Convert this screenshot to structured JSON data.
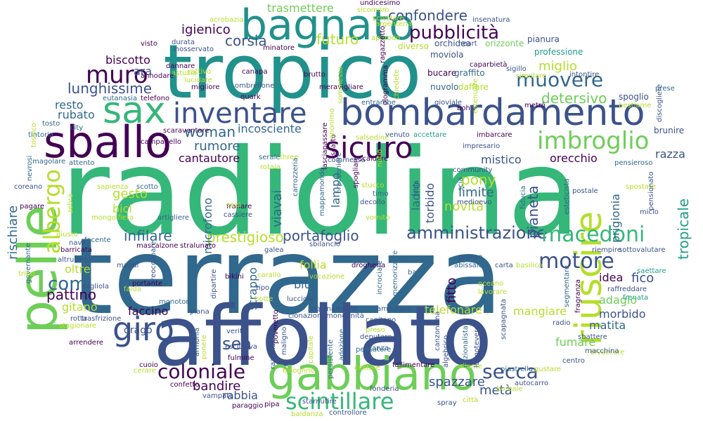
{
  "palette": {
    "dark_purple": "#440154",
    "indigo": "#3b528b",
    "blue": "#31688e",
    "teal": "#21918c",
    "sea": "#1f9e89",
    "green": "#35b779",
    "light_green": "#6ece58",
    "lime": "#b5de2b"
  },
  "words": [
    {
      "text": "radiolina",
      "color": "#35b779"
    },
    {
      "text": "terrazza",
      "color": "#31688e"
    },
    {
      "text": "affollato",
      "color": "#3b528b"
    },
    {
      "text": "tropico",
      "color": "#21918c"
    },
    {
      "text": "bombardamento",
      "color": "#3b528b"
    },
    {
      "text": "pelle",
      "color": "#6ece58"
    },
    {
      "text": "gabbiano",
      "color": "#6ece58"
    },
    {
      "text": "bagnato",
      "color": "#21918c"
    },
    {
      "text": "sballo",
      "color": "#440154"
    },
    {
      "text": "sax",
      "color": "#35b779"
    },
    {
      "text": "inventare",
      "color": "#3b528b"
    },
    {
      "text": "riuscire",
      "color": "#b5de2b"
    },
    {
      "text": "sicuro",
      "color": "#440154"
    },
    {
      "text": "imbroglio",
      "color": "#6ece58"
    },
    {
      "text": "giro",
      "color": "#3b528b"
    },
    {
      "text": "scintillare",
      "color": "#35b779"
    },
    {
      "text": "coloniale",
      "color": "#440154"
    },
    {
      "text": "amministrazione",
      "color": "#3b528b"
    },
    {
      "text": "pubblicità",
      "color": "#440154"
    },
    {
      "text": "muovere",
      "color": "#31688e"
    },
    {
      "text": "motore",
      "color": "#3b528b"
    },
    {
      "text": "macedoni",
      "color": "#35b779"
    },
    {
      "text": "muro",
      "color": "#440154"
    },
    {
      "text": "secca",
      "color": "#3b528b"
    },
    {
      "text": "albergo",
      "color": "#b5de2b"
    },
    {
      "text": "confondere",
      "color": "#3b528b"
    },
    {
      "text": "com",
      "color": "#31688e"
    },
    {
      "text": "woman",
      "color": "#31688e"
    },
    {
      "text": "sea",
      "color": "#3b528b"
    },
    {
      "text": "lunghissime",
      "color": "#3b528b"
    },
    {
      "text": "tropicale",
      "color": "#1f9e89"
    },
    {
      "text": "corsia",
      "color": "#3b528b"
    },
    {
      "text": "trasmettere",
      "color": "#6ece58"
    },
    {
      "text": "futuro",
      "color": "#b5de2b"
    },
    {
      "text": "igienico",
      "color": "#440154"
    },
    {
      "text": "biscotto",
      "color": "#440154"
    },
    {
      "text": "ara",
      "color": "#3b528b"
    },
    {
      "text": "detersivo",
      "color": "#6ece58"
    },
    {
      "text": "miglio",
      "color": "#b5de2b"
    },
    {
      "text": "idea",
      "color": "#440154"
    },
    {
      "text": "fico",
      "color": "#3b528b"
    },
    {
      "text": "adagio",
      "color": "#6ece58"
    },
    {
      "text": "pianeta",
      "color": "#3b528b"
    },
    {
      "text": "prigionia",
      "color": "#31688e"
    },
    {
      "text": "razza",
      "color": "#3b528b"
    },
    {
      "text": "orecchio",
      "color": "#440154"
    },
    {
      "text": "morbido",
      "color": "#3b528b"
    },
    {
      "text": "matita",
      "color": "#31688e"
    },
    {
      "text": "fumare",
      "color": "#6ece58"
    },
    {
      "text": "mangiare",
      "color": "#b5de2b"
    },
    {
      "text": "telefonare",
      "color": "#b5de2b"
    },
    {
      "text": "spazzare",
      "color": "#3b528b"
    },
    {
      "text": "metà",
      "color": "#3b528b"
    },
    {
      "text": "incosciente",
      "color": "#31688e"
    },
    {
      "text": "rumore",
      "color": "#31688e"
    },
    {
      "text": "cantautore",
      "color": "#440154"
    },
    {
      "text": "gesto",
      "color": "#b5de2b"
    },
    {
      "text": "bici",
      "color": "#b5de2b"
    },
    {
      "text": "infilare",
      "color": "#31688e"
    },
    {
      "text": "prestigioso",
      "color": "#b5de2b"
    },
    {
      "text": "portafoglio",
      "color": "#3b528b"
    },
    {
      "text": "microfono",
      "color": "#31688e"
    },
    {
      "text": "viavai",
      "color": "#31688e"
    },
    {
      "text": "lampo",
      "color": "#31688e"
    },
    {
      "text": "pony",
      "color": "#b5de2b"
    },
    {
      "text": "limite",
      "color": "#31688e"
    },
    {
      "text": "novità",
      "color": "#b5de2b"
    },
    {
      "text": "mistico",
      "color": "#3b528b"
    },
    {
      "text": "ladro",
      "color": "#31688e"
    },
    {
      "text": "torbido",
      "color": "#3b528b"
    },
    {
      "text": "rischiare",
      "color": "#31688e"
    },
    {
      "text": "pattino",
      "color": "#440154"
    },
    {
      "text": "gitano",
      "color": "#b5de2b"
    },
    {
      "text": "oltre",
      "color": "#b5de2b"
    },
    {
      "text": "faccino",
      "color": "#440154"
    },
    {
      "text": "strappo",
      "color": "#31688e"
    },
    {
      "text": "drago",
      "color": "#3b528b"
    },
    {
      "text": "follia",
      "color": "#b5de2b"
    },
    {
      "text": "blue",
      "color": "#31688e"
    },
    {
      "text": "bandire",
      "color": "#440154"
    },
    {
      "text": "rabbia",
      "color": "#3b528b"
    },
    {
      "text": "fitto",
      "color": "#440154"
    },
    {
      "text": "resto",
      "color": "#31688e"
    },
    {
      "text": "rubato",
      "color": "#31688e"
    },
    {
      "text": "tosto",
      "color": "#31688e"
    },
    {
      "text": "tintoria",
      "color": "#31688e"
    },
    {
      "text": "scia",
      "color": "#31688e"
    },
    {
      "text": "undicesimo",
      "color": "#440154"
    },
    {
      "text": "orchidea",
      "color": "#3b528b"
    },
    {
      "text": "moviola",
      "color": "#3b528b"
    },
    {
      "text": "bucare",
      "color": "#440154"
    },
    {
      "text": "graffito",
      "color": "#31688e"
    },
    {
      "text": "nuvolo",
      "color": "#31688e"
    },
    {
      "text": "daffare",
      "color": "#b5de2b"
    },
    {
      "text": "diverso",
      "color": "#b5de2b"
    },
    {
      "text": "orizzonte",
      "color": "#6ece58"
    },
    {
      "text": "pianura",
      "color": "#3b528b"
    },
    {
      "text": "professione",
      "color": "#1f9e89"
    },
    {
      "text": "spoglio",
      "color": "#3b528b"
    },
    {
      "text": "brunire",
      "color": "#3b528b"
    },
    {
      "text": "gioviale",
      "color": "#3b528b"
    },
    {
      "text": "entrambe",
      "color": "#31688e"
    },
    {
      "text": "metrò",
      "color": "#440154"
    },
    {
      "text": "imbarcare",
      "color": "#440154"
    },
    {
      "text": "impresario",
      "color": "#3b528b"
    },
    {
      "text": "commessa",
      "color": "#3b528b"
    },
    {
      "text": "scaldare",
      "color": "#440154"
    },
    {
      "text": "scatto",
      "color": "#440154"
    },
    {
      "text": "venuto",
      "color": "#3b528b"
    },
    {
      "text": "accettare",
      "color": "#1f9e89"
    },
    {
      "text": "rotaia",
      "color": "#b5de2b"
    },
    {
      "text": "three",
      "color": "#b5de2b"
    },
    {
      "text": "serale",
      "color": "#31688e"
    },
    {
      "text": "community",
      "color": "#3b528b"
    },
    {
      "text": "pensieroso",
      "color": "#31688e"
    },
    {
      "text": "spostare",
      "color": "#b5de2b"
    },
    {
      "text": "postale",
      "color": "#3b528b"
    },
    {
      "text": "micio",
      "color": "#3b528b"
    },
    {
      "text": "pensionato",
      "color": "#3b528b"
    },
    {
      "text": "medioevo",
      "color": "#3b528b"
    },
    {
      "text": "fiducia",
      "color": "#31688e"
    },
    {
      "text": "stucco",
      "color": "#b5de2b"
    },
    {
      "text": "timo",
      "color": "#31688e"
    },
    {
      "text": "decollo",
      "color": "#3b528b"
    },
    {
      "text": "carrozzeria",
      "color": "#31688e"
    },
    {
      "text": "isola",
      "color": "#3b528b"
    },
    {
      "text": "spogliare",
      "color": "#440154"
    },
    {
      "text": "franare",
      "color": "#440154"
    },
    {
      "text": "cassiere",
      "color": "#3b528b"
    },
    {
      "text": "soul",
      "color": "#b5de2b"
    },
    {
      "text": "pagare",
      "color": "#440154"
    },
    {
      "text": "coreano",
      "color": "#3b528b"
    },
    {
      "text": "mongolfiera",
      "color": "#b5de2b"
    },
    {
      "text": "giusto",
      "color": "#b5de2b"
    },
    {
      "text": "nave",
      "color": "#3b528b"
    },
    {
      "text": "facente",
      "color": "#31688e"
    },
    {
      "text": "mascalzone",
      "color": "#440154"
    },
    {
      "text": "stralunato",
      "color": "#440154"
    },
    {
      "text": "galea",
      "color": "#3b528b"
    },
    {
      "text": "sbilancio",
      "color": "#3b528b"
    },
    {
      "text": "barricata",
      "color": "#440154"
    },
    {
      "text": "altruismo",
      "color": "#3b528b"
    },
    {
      "text": "governante",
      "color": "#31688e"
    },
    {
      "text": "tribù",
      "color": "#b5de2b"
    },
    {
      "text": "mandi",
      "color": "#3b528b"
    },
    {
      "text": "tagliola",
      "color": "#3b528b"
    },
    {
      "text": "falda",
      "color": "#b5de2b"
    },
    {
      "text": "preoccupare",
      "color": "#3b528b"
    },
    {
      "text": "monotonia",
      "color": "#31688e"
    },
    {
      "text": "dipartire",
      "color": "#3b528b"
    },
    {
      "text": "bikini",
      "color": "#440154"
    },
    {
      "text": "corallo",
      "color": "#b5de2b"
    },
    {
      "text": "vocazione",
      "color": "#b5de2b"
    },
    {
      "text": "lucciola",
      "color": "#3b528b"
    },
    {
      "text": "tipo",
      "color": "#3b528b"
    },
    {
      "text": "botte",
      "color": "#b5de2b"
    },
    {
      "text": "piana",
      "color": "#3b528b"
    },
    {
      "text": "inquinamento",
      "color": "#3b528b"
    },
    {
      "text": "clonazione",
      "color": "#3b528b"
    },
    {
      "text": "mondanità",
      "color": "#3b528b"
    },
    {
      "text": "amputare",
      "color": "#3b528b"
    },
    {
      "text": "capitano",
      "color": "#3b528b"
    },
    {
      "text": "deputare",
      "color": "#3b528b"
    },
    {
      "text": "preso",
      "color": "#b5de2b"
    },
    {
      "text": "stanza",
      "color": "#31688e"
    },
    {
      "text": "pranzo",
      "color": "#3b528b"
    },
    {
      "text": "abissale",
      "color": "#31688e"
    },
    {
      "text": "carta",
      "color": "#3b528b"
    },
    {
      "text": "basilico",
      "color": "#b5de2b"
    },
    {
      "text": "saettare",
      "color": "#1f9e89"
    },
    {
      "text": "riempire",
      "color": "#3b528b"
    },
    {
      "text": "sottovalutare",
      "color": "#3b528b"
    },
    {
      "text": "raffreddare",
      "color": "#3b528b"
    },
    {
      "text": "frenata",
      "color": "#1f9e89"
    },
    {
      "text": "radio",
      "color": "#3b528b"
    },
    {
      "text": "oceano",
      "color": "#b5de2b"
    },
    {
      "text": "lavorare",
      "color": "#b5de2b"
    },
    {
      "text": "sbattere",
      "color": "#3b528b"
    },
    {
      "text": "bivaccare",
      "color": "#b5de2b"
    },
    {
      "text": "macchina",
      "color": "#3b528b"
    },
    {
      "text": "centro",
      "color": "#3b528b"
    },
    {
      "text": "gustare",
      "color": "#b5de2b"
    },
    {
      "text": "autocarro",
      "color": "#3b528b"
    },
    {
      "text": "boreale",
      "color": "#b5de2b"
    },
    {
      "text": "città",
      "color": "#b5de2b"
    },
    {
      "text": "spray",
      "color": "#3b528b"
    },
    {
      "text": "fallimentare",
      "color": "#440154"
    },
    {
      "text": "aliante",
      "color": "#b5de2b"
    },
    {
      "text": "fonderia",
      "color": "#3b528b"
    },
    {
      "text": "controllore",
      "color": "#3b528b"
    },
    {
      "text": "baldanza",
      "color": "#b5de2b"
    },
    {
      "text": "paraggio",
      "color": "#440154"
    },
    {
      "text": "pipa",
      "color": "#440154"
    },
    {
      "text": "starnutire",
      "color": "#3b528b"
    },
    {
      "text": "vampata",
      "color": "#3b528b"
    },
    {
      "text": "confetto",
      "color": "#440154"
    },
    {
      "text": "cuoio",
      "color": "#440154"
    },
    {
      "text": "cerare",
      "color": "#b5de2b"
    },
    {
      "text": "arrendere",
      "color": "#440154"
    },
    {
      "text": "stagionare",
      "color": "#b5de2b"
    },
    {
      "text": "rotta",
      "color": "#3b528b"
    },
    {
      "text": "trasfrizione",
      "color": "#3b528b"
    },
    {
      "text": "armonia",
      "color": "#31688e"
    },
    {
      "text": "verità",
      "color": "#3b528b"
    },
    {
      "text": "fulmine",
      "color": "#440154"
    },
    {
      "text": "ponere",
      "color": "#b5de2b"
    },
    {
      "text": "esclusiva",
      "color": "#3b528b"
    },
    {
      "text": "bisognno",
      "color": "#b5de2b"
    },
    {
      "text": "costare",
      "color": "#b5de2b"
    },
    {
      "text": "pensatore",
      "color": "#31688e"
    },
    {
      "text": "canzoncina",
      "color": "#3b528b"
    },
    {
      "text": "algebrico",
      "color": "#3b528b"
    },
    {
      "text": "piastrella",
      "color": "#31688e"
    },
    {
      "text": "scapagnata",
      "color": "#3b528b"
    },
    {
      "text": "lungotevere",
      "color": "#3b528b"
    },
    {
      "text": "nazionalista",
      "color": "#31688e"
    },
    {
      "text": "segmentare",
      "color": "#31688e"
    },
    {
      "text": "fragranza",
      "color": "#440154"
    },
    {
      "text": "acrobazia",
      "color": "#b5de2b"
    },
    {
      "text": "sicomoro",
      "color": "#b5de2b"
    },
    {
      "text": "scivolare",
      "color": "#b5de2b"
    },
    {
      "text": "argenteria",
      "color": "#b5de2b"
    },
    {
      "text": "insenatura",
      "color": "#3b528b"
    },
    {
      "text": "approdo",
      "color": "#b5de2b"
    },
    {
      "text": "heart",
      "color": "#3b528b"
    },
    {
      "text": "visto",
      "color": "#440154"
    },
    {
      "text": "durata",
      "color": "#3b528b"
    },
    {
      "text": "inosservato",
      "color": "#3b528b"
    },
    {
      "text": "minatore",
      "color": "#440154"
    },
    {
      "text": "dannare",
      "color": "#440154"
    },
    {
      "text": "astuzia",
      "color": "#b5de2b"
    },
    {
      "text": "annodare",
      "color": "#440154"
    },
    {
      "text": "lucidare",
      "color": "#b5de2b"
    },
    {
      "text": "cattivo",
      "color": "#b5de2b"
    },
    {
      "text": "canapa",
      "color": "#440154"
    },
    {
      "text": "migliore",
      "color": "#440154"
    },
    {
      "text": "ombrellone",
      "color": "#3b528b"
    },
    {
      "text": "quark",
      "color": "#440154"
    },
    {
      "text": "brutto",
      "color": "#440154"
    },
    {
      "text": "meravigliare",
      "color": "#440154"
    },
    {
      "text": "ragazzotto",
      "color": "#440154"
    },
    {
      "text": "ologramma",
      "color": "#440154"
    },
    {
      "text": "chiedete",
      "color": "#b5de2b"
    },
    {
      "text": "sommesso",
      "color": "#b5de2b"
    },
    {
      "text": "boh",
      "color": "#440154"
    },
    {
      "text": "sigillo",
      "color": "#3b528b"
    },
    {
      "text": "simulare",
      "color": "#b5de2b"
    },
    {
      "text": "intontire",
      "color": "#3b528b"
    },
    {
      "text": "prese",
      "color": "#31688e"
    },
    {
      "text": "discogliere",
      "color": "#3b528b"
    },
    {
      "text": "bestiame",
      "color": "#b5de2b"
    },
    {
      "text": "eutanasia",
      "color": "#31688e"
    },
    {
      "text": "telefono",
      "color": "#440154"
    },
    {
      "text": "city",
      "color": "#31688e"
    },
    {
      "text": "scaraventare",
      "color": "#440154"
    },
    {
      "text": "campanello",
      "color": "#440154"
    },
    {
      "text": "attento",
      "color": "#31688e"
    },
    {
      "text": "magolare",
      "color": "#31688e"
    },
    {
      "text": "nevrosi",
      "color": "#31688e"
    },
    {
      "text": "scotto",
      "color": "#31688e"
    },
    {
      "text": "sapienza",
      "color": "#b5de2b"
    },
    {
      "text": "zebra",
      "color": "#b5de2b"
    },
    {
      "text": "artigliere",
      "color": "#31688e"
    },
    {
      "text": "mappamondo",
      "color": "#31688e"
    },
    {
      "text": "bracconiere",
      "color": "#31688e"
    },
    {
      "text": "natio",
      "color": "#b5de2b"
    },
    {
      "text": "drogheria",
      "color": "#440154"
    },
    {
      "text": "incrociare",
      "color": "#31688e"
    },
    {
      "text": "memorizzare",
      "color": "#31688e"
    },
    {
      "text": "maligno",
      "color": "#3b528b"
    },
    {
      "text": "poveretto",
      "color": "#440154"
    },
    {
      "text": "razionale",
      "color": "#3b528b"
    },
    {
      "text": "capitale",
      "color": "#b5de2b"
    },
    {
      "text": "persistente",
      "color": "#31688e"
    },
    {
      "text": "adozione",
      "color": "#31688e"
    },
    {
      "text": "bar",
      "color": "#31688e"
    },
    {
      "text": "estenuare",
      "color": "#b5de2b"
    },
    {
      "text": "caparbietà",
      "color": "#440154"
    },
    {
      "text": "esteticista",
      "color": "#31688e"
    },
    {
      "text": "lasciapassare",
      "color": "#440154"
    },
    {
      "text": "anonimo",
      "color": "#b5de2b"
    },
    {
      "text": "portante",
      "color": "#440154"
    },
    {
      "text": "tossico",
      "color": "#b5de2b"
    },
    {
      "text": "salsedine",
      "color": "#b5de2b"
    },
    {
      "text": "vomito",
      "color": "#b5de2b"
    }
  ]
}
